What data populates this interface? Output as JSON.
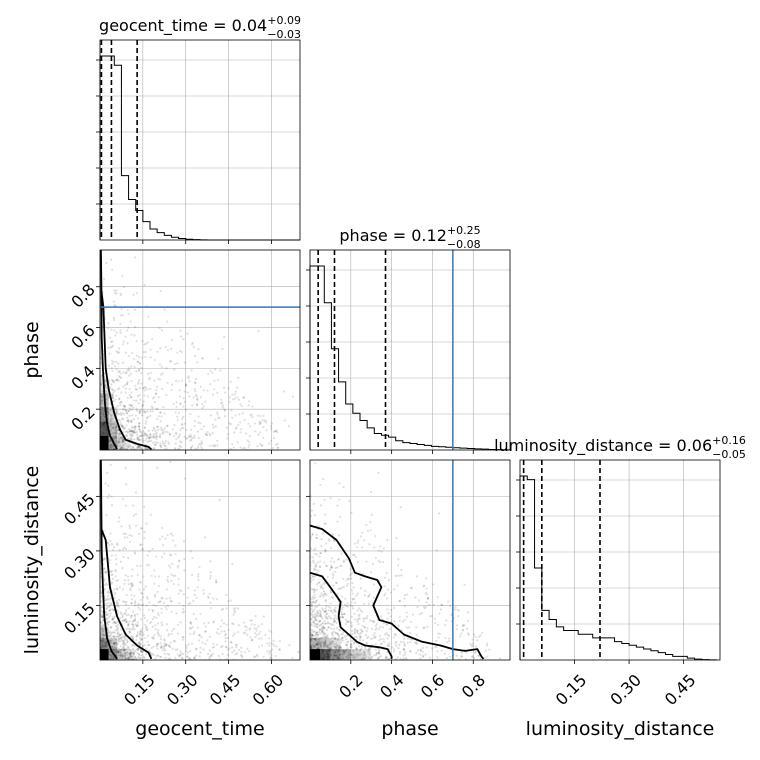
{
  "chart_data": {
    "type": "corner",
    "parameters": [
      "geocent_time",
      "phase",
      "luminosity_distance"
    ],
    "truth_color": "#3b76b0",
    "marginals": [
      {
        "parameter": "geocent_time",
        "title": {
          "name": "geocent_time",
          "median": "0.04",
          "plus": "+0.09",
          "minus": "−0.03"
        },
        "range": [
          0.0,
          0.7
        ],
        "quantile_lines": [
          0.005,
          0.04,
          0.13
        ],
        "truth": null,
        "bin_edges": [
          0.0,
          0.025,
          0.05,
          0.075,
          0.1,
          0.125,
          0.15,
          0.175,
          0.2,
          0.225,
          0.25,
          0.275,
          0.3,
          0.325,
          0.35,
          0.375,
          0.4,
          0.425,
          0.45,
          0.475,
          0.5,
          0.525,
          0.55,
          0.575,
          0.6,
          0.625,
          0.65,
          0.675,
          0.7
        ],
        "density": [
          100,
          100,
          95,
          35,
          22,
          16,
          10,
          6,
          4,
          2.5,
          1.5,
          0.8,
          0.4,
          0.2,
          0.1,
          0,
          0,
          0,
          0,
          0,
          0,
          0,
          0,
          0,
          0,
          0,
          0,
          0
        ],
        "y_max": 100,
        "x_ticks": [
          0.15,
          0.3,
          0.45,
          0.6
        ],
        "x_tick_labels": [
          "0.15",
          "0.30",
          "0.45",
          "0.60"
        ],
        "xlabel": "geocent_time"
      },
      {
        "parameter": "phase",
        "title": {
          "name": "phase",
          "median": "0.12",
          "plus": "+0.25",
          "minus": "−0.08"
        },
        "range": [
          0.0,
          0.98
        ],
        "quantile_lines": [
          0.04,
          0.12,
          0.37
        ],
        "truth": 0.7,
        "bin_edges": [
          0.0,
          0.035,
          0.07,
          0.105,
          0.14,
          0.175,
          0.21,
          0.245,
          0.28,
          0.315,
          0.35,
          0.385,
          0.42,
          0.455,
          0.49,
          0.525,
          0.56,
          0.595,
          0.63,
          0.665,
          0.7,
          0.735,
          0.77,
          0.805,
          0.84,
          0.875,
          0.91,
          0.945,
          0.98
        ],
        "density": [
          100,
          100,
          80,
          55,
          37,
          25,
          20,
          16,
          12,
          9,
          8,
          7,
          5,
          4,
          3.5,
          3,
          2.5,
          2,
          1.8,
          1.5,
          1.2,
          1,
          0.8,
          0.6,
          0.5,
          0.3,
          0.2,
          0.1
        ],
        "y_max": 100,
        "x_ticks": [
          0.2,
          0.4,
          0.6,
          0.8
        ],
        "x_tick_labels": [
          "0.2",
          "0.4",
          "0.6",
          "0.8"
        ],
        "xlabel": "phase"
      },
      {
        "parameter": "luminosity_distance",
        "title": {
          "name": "luminosity_distance",
          "median": "0.06",
          "plus": "+0.16",
          "minus": "−0.05"
        },
        "range": [
          0.0,
          0.55
        ],
        "quantile_lines": [
          0.01,
          0.06,
          0.22
        ],
        "truth": null,
        "bin_edges": [
          0.0,
          0.02,
          0.04,
          0.06,
          0.08,
          0.1,
          0.12,
          0.14,
          0.16,
          0.18,
          0.2,
          0.22,
          0.24,
          0.26,
          0.28,
          0.3,
          0.32,
          0.34,
          0.36,
          0.38,
          0.4,
          0.42,
          0.44,
          0.46,
          0.48,
          0.5,
          0.52,
          0.54
        ],
        "density": [
          100,
          98,
          50,
          27,
          22,
          18,
          16,
          16,
          14,
          14,
          12,
          12,
          12,
          10,
          9,
          8,
          7,
          6,
          5,
          4,
          3,
          2,
          2,
          1,
          0.5,
          0.2,
          0.1
        ],
        "y_max": 100,
        "x_ticks": [
          0.15,
          0.3,
          0.45
        ],
        "x_tick_labels": [
          "0.15",
          "0.30",
          "0.45"
        ],
        "xlabel": "luminosity_distance"
      }
    ],
    "joints": [
      {
        "x": "geocent_time",
        "y": "phase",
        "x_range": [
          0.0,
          0.7
        ],
        "y_range": [
          0.0,
          0.98
        ],
        "y_ticks": [
          0.2,
          0.4,
          0.6,
          0.8
        ],
        "y_tick_labels": [
          "0.2",
          "0.4",
          "0.6",
          "0.8"
        ],
        "ylabel": "phase",
        "truth_y": 0.7,
        "contours": [
          [
            [
              0.003,
              0.98
            ],
            [
              0.005,
              0.8
            ],
            [
              0.006,
              0.55
            ],
            [
              0.01,
              0.4
            ],
            [
              0.014,
              0.3
            ],
            [
              0.018,
              0.22
            ],
            [
              0.025,
              0.13
            ],
            [
              0.035,
              0.07
            ],
            [
              0.05,
              0.03
            ],
            [
              0.06,
              0.005
            ]
          ],
          [
            [
              0.005,
              0.78
            ],
            [
              0.012,
              0.7
            ],
            [
              0.02,
              0.4
            ],
            [
              0.03,
              0.3
            ],
            [
              0.05,
              0.18
            ],
            [
              0.07,
              0.1
            ],
            [
              0.09,
              0.05
            ],
            [
              0.13,
              0.03
            ],
            [
              0.17,
              0.015
            ],
            [
              0.18,
              0.003
            ]
          ]
        ],
        "density_cells": [
          {
            "x": 0.0,
            "y": 0.0,
            "w": 0.03,
            "h": 0.07,
            "v": 1.0
          },
          {
            "x": 0.03,
            "y": 0.0,
            "w": 0.03,
            "h": 0.07,
            "v": 0.35
          },
          {
            "x": 0.06,
            "y": 0.0,
            "w": 0.03,
            "h": 0.07,
            "v": 0.15
          },
          {
            "x": 0.0,
            "y": 0.07,
            "w": 0.03,
            "h": 0.07,
            "v": 0.65
          },
          {
            "x": 0.03,
            "y": 0.07,
            "w": 0.03,
            "h": 0.07,
            "v": 0.25
          },
          {
            "x": 0.0,
            "y": 0.14,
            "w": 0.03,
            "h": 0.07,
            "v": 0.45
          },
          {
            "x": 0.03,
            "y": 0.14,
            "w": 0.03,
            "h": 0.07,
            "v": 0.15
          },
          {
            "x": 0.0,
            "y": 0.21,
            "w": 0.03,
            "h": 0.07,
            "v": 0.25
          },
          {
            "x": 0.0,
            "y": 0.28,
            "w": 0.03,
            "h": 0.07,
            "v": 0.12
          }
        ],
        "scatter_scale": 0.11
      },
      {
        "x": "geocent_time",
        "y": "luminosity_distance",
        "x_range": [
          0.0,
          0.7
        ],
        "y_range": [
          0.0,
          0.55
        ],
        "y_ticks": [
          0.15,
          0.3,
          0.45
        ],
        "y_tick_labels": [
          "0.15",
          "0.30",
          "0.45"
        ],
        "ylabel": "luminosity_distance",
        "truth_y": null,
        "contours": [
          [
            [
              0.003,
              0.55
            ],
            [
              0.005,
              0.4
            ],
            [
              0.006,
              0.3
            ],
            [
              0.01,
              0.2
            ],
            [
              0.015,
              0.12
            ],
            [
              0.025,
              0.06
            ],
            [
              0.04,
              0.025
            ],
            [
              0.06,
              0.003
            ]
          ],
          [
            [
              0.005,
              0.36
            ],
            [
              0.02,
              0.33
            ],
            [
              0.035,
              0.2
            ],
            [
              0.06,
              0.12
            ],
            [
              0.09,
              0.07
            ],
            [
              0.13,
              0.04
            ],
            [
              0.17,
              0.02
            ],
            [
              0.18,
              0.003
            ]
          ]
        ],
        "density_cells": [
          {
            "x": 0.0,
            "y": 0.0,
            "w": 0.03,
            "h": 0.03,
            "v": 1.0
          },
          {
            "x": 0.03,
            "y": 0.0,
            "w": 0.03,
            "h": 0.03,
            "v": 0.4
          },
          {
            "x": 0.06,
            "y": 0.0,
            "w": 0.03,
            "h": 0.03,
            "v": 0.2
          },
          {
            "x": 0.09,
            "y": 0.0,
            "w": 0.03,
            "h": 0.03,
            "v": 0.1
          },
          {
            "x": 0.0,
            "y": 0.03,
            "w": 0.03,
            "h": 0.03,
            "v": 0.45
          },
          {
            "x": 0.03,
            "y": 0.03,
            "w": 0.03,
            "h": 0.03,
            "v": 0.2
          },
          {
            "x": 0.0,
            "y": 0.06,
            "w": 0.03,
            "h": 0.03,
            "v": 0.2
          }
        ],
        "scatter_scale": 0.11
      },
      {
        "x": "phase",
        "y": "luminosity_distance",
        "x_range": [
          0.0,
          0.98
        ],
        "y_range": [
          0.0,
          0.55
        ],
        "y_ticks": [
          0.15,
          0.3,
          0.45
        ],
        "y_tick_labels": [],
        "ylabel": "",
        "truth_x": 0.7,
        "truth_y": null,
        "contours": [
          [
            [
              0.0,
              0.37
            ],
            [
              0.06,
              0.36
            ],
            [
              0.13,
              0.33
            ],
            [
              0.19,
              0.28
            ],
            [
              0.22,
              0.24
            ],
            [
              0.27,
              0.23
            ],
            [
              0.33,
              0.22
            ],
            [
              0.35,
              0.2
            ],
            [
              0.31,
              0.15
            ],
            [
              0.34,
              0.11
            ],
            [
              0.4,
              0.1
            ],
            [
              0.46,
              0.07
            ],
            [
              0.55,
              0.05
            ],
            [
              0.64,
              0.04
            ],
            [
              0.7,
              0.03
            ],
            [
              0.76,
              0.025
            ],
            [
              0.82,
              0.03
            ],
            [
              0.84,
              0.01
            ],
            [
              0.85,
              0.003
            ]
          ],
          [
            [
              0.0,
              0.24
            ],
            [
              0.06,
              0.23
            ],
            [
              0.1,
              0.2
            ],
            [
              0.15,
              0.16
            ],
            [
              0.14,
              0.12
            ],
            [
              0.15,
              0.09
            ],
            [
              0.19,
              0.07
            ],
            [
              0.23,
              0.05
            ],
            [
              0.27,
              0.04
            ],
            [
              0.34,
              0.035
            ],
            [
              0.38,
              0.03
            ],
            [
              0.4,
              0.01
            ],
            [
              0.4,
              0.003
            ]
          ]
        ],
        "density_cells": [
          {
            "x": 0.0,
            "y": 0.0,
            "w": 0.05,
            "h": 0.03,
            "v": 1.0
          },
          {
            "x": 0.05,
            "y": 0.0,
            "w": 0.05,
            "h": 0.03,
            "v": 0.65
          },
          {
            "x": 0.1,
            "y": 0.0,
            "w": 0.05,
            "h": 0.03,
            "v": 0.45
          },
          {
            "x": 0.15,
            "y": 0.0,
            "w": 0.05,
            "h": 0.03,
            "v": 0.3
          },
          {
            "x": 0.2,
            "y": 0.0,
            "w": 0.05,
            "h": 0.03,
            "v": 0.18
          },
          {
            "x": 0.25,
            "y": 0.0,
            "w": 0.05,
            "h": 0.03,
            "v": 0.1
          },
          {
            "x": 0.0,
            "y": 0.03,
            "w": 0.05,
            "h": 0.03,
            "v": 0.3
          },
          {
            "x": 0.05,
            "y": 0.03,
            "w": 0.05,
            "h": 0.03,
            "v": 0.2
          },
          {
            "x": 0.1,
            "y": 0.03,
            "w": 0.05,
            "h": 0.03,
            "v": 0.12
          }
        ],
        "scatter_scale": 0.11
      }
    ]
  }
}
